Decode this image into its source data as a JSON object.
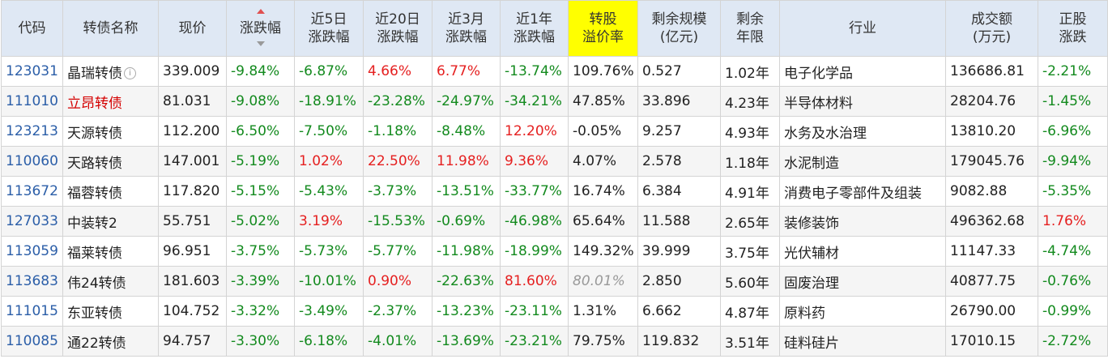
{
  "headers": {
    "code": "代码",
    "name": "转债名称",
    "price": "现价",
    "change": "涨跌幅",
    "d5": [
      "近5日",
      "涨跌幅"
    ],
    "d20": [
      "近20日",
      "涨跌幅"
    ],
    "m3": [
      "近3月",
      "涨跌幅"
    ],
    "y1": [
      "近1年",
      "涨跌幅"
    ],
    "premium": [
      "转股",
      "溢价率"
    ],
    "scale": [
      "剩余规模",
      "(亿元)"
    ],
    "term": [
      "剩余",
      "年限"
    ],
    "industry": "行业",
    "volume": [
      "成交额",
      "(万元)"
    ],
    "stock": [
      "正股",
      "涨跌"
    ]
  },
  "colors": {
    "header_bg": "#dfe8f4",
    "highlight_header_bg": "#ffff00",
    "up": "#e52020",
    "down": "#138a1e",
    "code_link": "#2b5ea8"
  },
  "rows": [
    {
      "code": "123031",
      "name": "晶瑞转债",
      "name_color": "normal",
      "info": "i",
      "price": "339.009",
      "change": "-9.84%",
      "d5": "-6.87%",
      "d20": "4.66%",
      "m3": "6.77%",
      "y1": "-13.74%",
      "premium": "109.76%",
      "premium_style": "normal",
      "scale": "0.527",
      "term": "1.02年",
      "industry": "电子化学品",
      "volume": "136686.81",
      "stock": "-2.21%"
    },
    {
      "code": "111010",
      "name": "立昂转债",
      "name_color": "red",
      "price": "81.031",
      "change": "-9.08%",
      "d5": "-18.91%",
      "d20": "-23.28%",
      "m3": "-24.97%",
      "y1": "-34.21%",
      "premium": "47.85%",
      "premium_style": "normal",
      "scale": "33.896",
      "term": "4.23年",
      "industry": "半导体材料",
      "volume": "28204.76",
      "stock": "-1.45%"
    },
    {
      "code": "123213",
      "name": "天源转债",
      "name_color": "normal",
      "price": "112.200",
      "change": "-6.50%",
      "d5": "-7.50%",
      "d20": "-1.18%",
      "m3": "-8.48%",
      "y1": "12.20%",
      "premium": "-0.05%",
      "premium_style": "normal",
      "scale": "9.257",
      "term": "4.93年",
      "industry": "水务及水治理",
      "volume": "13810.20",
      "stock": "-6.96%"
    },
    {
      "code": "110060",
      "name": "天路转债",
      "name_color": "normal",
      "price": "147.001",
      "change": "-5.19%",
      "d5": "1.02%",
      "d20": "22.50%",
      "m3": "11.98%",
      "y1": "9.36%",
      "premium": "4.07%",
      "premium_style": "normal",
      "scale": "2.578",
      "term": "1.18年",
      "industry": "水泥制造",
      "volume": "179045.76",
      "stock": "-9.94%"
    },
    {
      "code": "113672",
      "name": "福蓉转债",
      "name_color": "normal",
      "price": "117.820",
      "change": "-5.15%",
      "d5": "-5.43%",
      "d20": "-3.73%",
      "m3": "-13.51%",
      "y1": "-33.77%",
      "premium": "16.74%",
      "premium_style": "normal",
      "scale": "6.384",
      "term": "4.91年",
      "industry": "消费电子零部件及组装",
      "volume": "9082.88",
      "stock": "-5.35%"
    },
    {
      "code": "127033",
      "name": "中装转2",
      "name_color": "normal",
      "price": "55.751",
      "change": "-5.02%",
      "d5": "3.19%",
      "d20": "-15.53%",
      "m3": "-0.69%",
      "y1": "-46.98%",
      "premium": "65.64%",
      "premium_style": "normal",
      "scale": "11.588",
      "term": "2.65年",
      "industry": "装修装饰",
      "volume": "496362.68",
      "stock": "1.76%"
    },
    {
      "code": "113059",
      "name": "福莱转债",
      "name_color": "normal",
      "price": "96.951",
      "change": "-3.75%",
      "d5": "-5.73%",
      "d20": "-5.77%",
      "m3": "-11.98%",
      "y1": "-18.99%",
      "premium": "149.32%",
      "premium_style": "normal",
      "scale": "39.999",
      "term": "3.75年",
      "industry": "光伏辅材",
      "volume": "11147.33",
      "stock": "-4.74%"
    },
    {
      "code": "113683",
      "name": "伟24转债",
      "name_color": "normal",
      "price": "181.603",
      "change": "-3.39%",
      "d5": "-10.01%",
      "d20": "0.90%",
      "m3": "-22.63%",
      "y1": "81.60%",
      "premium": "80.01%",
      "premium_style": "gray-italic",
      "scale": "2.850",
      "term": "5.60年",
      "industry": "固废治理",
      "volume": "40877.75",
      "stock": "-0.76%"
    },
    {
      "code": "111015",
      "name": "东亚转债",
      "name_color": "normal",
      "price": "104.752",
      "change": "-3.32%",
      "d5": "-3.49%",
      "d20": "-2.37%",
      "m3": "-13.23%",
      "y1": "-23.11%",
      "premium": "1.31%",
      "premium_style": "normal",
      "scale": "6.662",
      "term": "4.87年",
      "industry": "原料药",
      "volume": "26790.00",
      "stock": "-0.99%"
    },
    {
      "code": "110085",
      "name": "通22转债",
      "name_color": "normal",
      "price": "94.757",
      "change": "-3.30%",
      "d5": "-6.18%",
      "d20": "-4.01%",
      "m3": "-13.69%",
      "y1": "-23.21%",
      "premium": "79.75%",
      "premium_style": "normal",
      "scale": "119.832",
      "term": "3.51年",
      "industry": "硅料硅片",
      "volume": "17010.15",
      "stock": "-2.72%"
    }
  ]
}
